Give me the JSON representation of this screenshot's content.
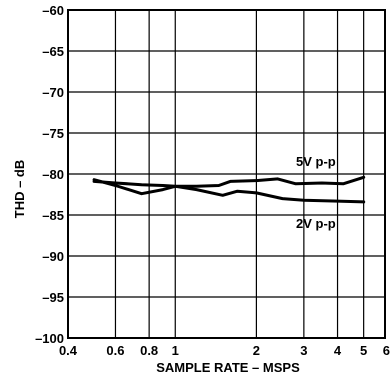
{
  "chart_data": {
    "type": "line",
    "xlabel": "SAMPLE RATE  – MSPS",
    "ylabel": "THD – dB",
    "x_scale": "log",
    "xlim": [
      0.4,
      6
    ],
    "ylim": [
      -100,
      -60
    ],
    "grid": true,
    "x_ticks": [
      0.4,
      0.6,
      0.8,
      1,
      2,
      3,
      4,
      5,
      6
    ],
    "x_tick_labels": [
      "0.4",
      "0.6",
      "0.8",
      "1",
      "2",
      "3",
      "4",
      "5",
      "6"
    ],
    "y_ticks": [
      -100,
      -95,
      -90,
      -85,
      -80,
      -75,
      -70,
      -65,
      -60
    ],
    "y_tick_labels": [
      "–100",
      "–95",
      "–90",
      "–85",
      "–80",
      "–75",
      "–70",
      "–65",
      "–60"
    ],
    "series": [
      {
        "name": "5V p-p",
        "x": [
          0.5,
          0.6,
          0.75,
          0.9,
          1.0,
          1.2,
          1.45,
          1.6,
          2.0,
          2.4,
          2.8,
          3.5,
          4.2,
          5.0
        ],
        "y": [
          -80.9,
          -81.1,
          -81.3,
          -81.4,
          -81.5,
          -81.5,
          -81.4,
          -80.9,
          -80.8,
          -80.6,
          -81.2,
          -81.1,
          -81.2,
          -80.4
        ]
      },
      {
        "name": "2V p-p",
        "x": [
          0.5,
          0.6,
          0.75,
          0.9,
          1.0,
          1.2,
          1.5,
          1.7,
          2.0,
          2.5,
          3.0,
          4.0,
          5.0
        ],
        "y": [
          -80.7,
          -81.4,
          -82.4,
          -81.9,
          -81.5,
          -81.9,
          -82.6,
          -82.1,
          -82.3,
          -83.0,
          -83.2,
          -83.3,
          -83.4
        ]
      }
    ],
    "annotations": [
      "5V p-p",
      "2V p-p"
    ]
  }
}
